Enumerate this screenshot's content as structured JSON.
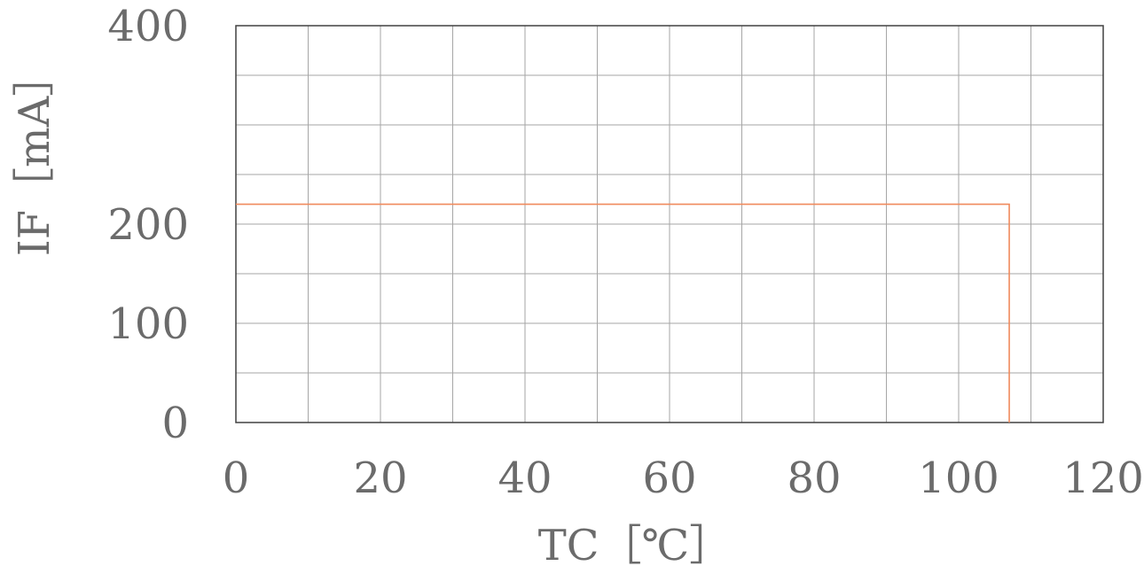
{
  "chart_data": {
    "type": "line",
    "xlabel": "TC［℃］",
    "ylabel": "IF［mA］",
    "xlim": [
      0,
      120
    ],
    "ylim": [
      0,
      400
    ],
    "x_ticks": [
      0,
      20,
      40,
      60,
      80,
      100,
      120
    ],
    "x_tick_labels": [
      "0",
      "20",
      "40",
      "60",
      "80",
      "100",
      "120"
    ],
    "x_gridlines": [
      0,
      10,
      20,
      30,
      40,
      50,
      60,
      70,
      80,
      90,
      100,
      110,
      120
    ],
    "y_ticks": [
      0,
      100,
      200,
      400
    ],
    "y_tick_labels": [
      "0",
      "100",
      "200",
      "400"
    ],
    "y_gridlines": [
      0,
      50,
      100,
      150,
      200,
      250,
      300,
      350,
      400
    ],
    "grid": true,
    "grid_color": "#a6a6a6",
    "text_color": "#6b6b6b",
    "series": [
      {
        "color": "#f08a5d",
        "points": [
          [
            0,
            220
          ],
          [
            107,
            220
          ],
          [
            107,
            0
          ]
        ]
      }
    ]
  }
}
